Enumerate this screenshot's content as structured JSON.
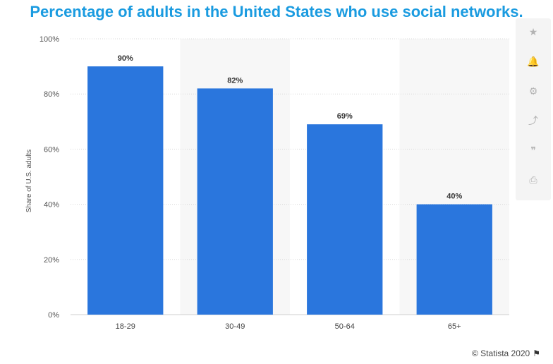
{
  "header": {
    "title": "Percentage of adults in the United States who use social networks."
  },
  "colors": {
    "title": "#1a9be0",
    "bar": "#2a76dd",
    "band": "#f7f7f7",
    "grid": "#d9d9d9"
  },
  "chart_data": {
    "type": "bar",
    "title": "Percentage of adults in the United States who use social networks.",
    "xlabel": "",
    "ylabel": "Share of U.S. adults",
    "categories": [
      "18-29",
      "30-49",
      "50-64",
      "65+"
    ],
    "values": [
      90,
      82,
      69,
      40
    ],
    "value_labels": [
      "90%",
      "82%",
      "69%",
      "40%"
    ],
    "ylim": [
      0,
      100
    ],
    "yticks": [
      0,
      20,
      40,
      60,
      80,
      100
    ],
    "ytick_labels": [
      "0%",
      "20%",
      "40%",
      "60%",
      "80%",
      "100%"
    ],
    "grid": true
  },
  "toolbar": {
    "icons": [
      "star-icon",
      "bell-icon",
      "gear-icon",
      "share-icon",
      "quote-icon",
      "print-icon"
    ],
    "glyphs": [
      "★",
      "🔔",
      "⚙",
      "⤴",
      "❞",
      "⎙"
    ]
  },
  "footer": {
    "copyright": "© Statista 2020",
    "flag_glyph": "⚑"
  }
}
